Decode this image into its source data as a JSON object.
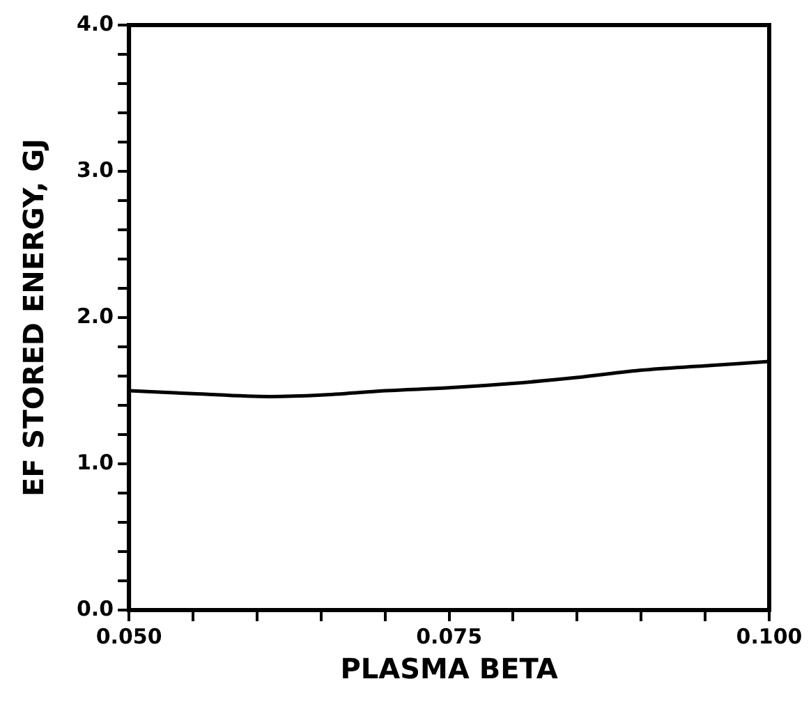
{
  "chart_data": {
    "type": "line",
    "xlabel": "PLASMA BETA",
    "ylabel": "EF STORED ENERGY, GJ",
    "x": [
      0.05,
      0.055,
      0.061,
      0.065,
      0.07,
      0.075,
      0.08,
      0.085,
      0.09,
      0.095,
      0.1
    ],
    "series": [
      {
        "color": "#000000",
        "values": [
          1.5,
          1.48,
          1.46,
          1.47,
          1.5,
          1.52,
          1.55,
          1.59,
          1.64,
          1.67,
          1.7
        ]
      }
    ],
    "xlim": [
      0.05,
      0.1
    ],
    "xticks": [
      {
        "value": 0.05,
        "label": "0.050"
      },
      {
        "value": 0.055,
        "label": null
      },
      {
        "value": 0.06,
        "label": null
      },
      {
        "value": 0.065,
        "label": null
      },
      {
        "value": 0.07,
        "label": null
      },
      {
        "value": 0.075,
        "label": "0.075"
      },
      {
        "value": 0.08,
        "label": null
      },
      {
        "value": 0.085,
        "label": null
      },
      {
        "value": 0.09,
        "label": null
      },
      {
        "value": 0.095,
        "label": null
      },
      {
        "value": 0.1,
        "label": "0.100"
      }
    ],
    "ylim": [
      0,
      4
    ],
    "yticks": [
      {
        "value": 0,
        "label": "0.0"
      },
      {
        "value": 0.2,
        "label": null
      },
      {
        "value": 0.4,
        "label": null
      },
      {
        "value": 0.6,
        "label": null
      },
      {
        "value": 0.8,
        "label": null
      },
      {
        "value": 1,
        "label": "1.0"
      },
      {
        "value": 1.2,
        "label": null
      },
      {
        "value": 1.4,
        "label": null
      },
      {
        "value": 1.6,
        "label": null
      },
      {
        "value": 1.8,
        "label": null
      },
      {
        "value": 2,
        "label": "2.0"
      },
      {
        "value": 2.2,
        "label": null
      },
      {
        "value": 2.4,
        "label": null
      },
      {
        "value": 2.6,
        "label": null
      },
      {
        "value": 2.8,
        "label": null
      },
      {
        "value": 3,
        "label": "3.0"
      },
      {
        "value": 3.2,
        "label": null
      },
      {
        "value": 3.4,
        "label": null
      },
      {
        "value": 3.6,
        "label": null
      },
      {
        "value": 3.8,
        "label": null
      },
      {
        "value": 4,
        "label": "4.0"
      }
    ],
    "grid": false,
    "legend": false,
    "marker": "none",
    "line_style": "solid"
  }
}
